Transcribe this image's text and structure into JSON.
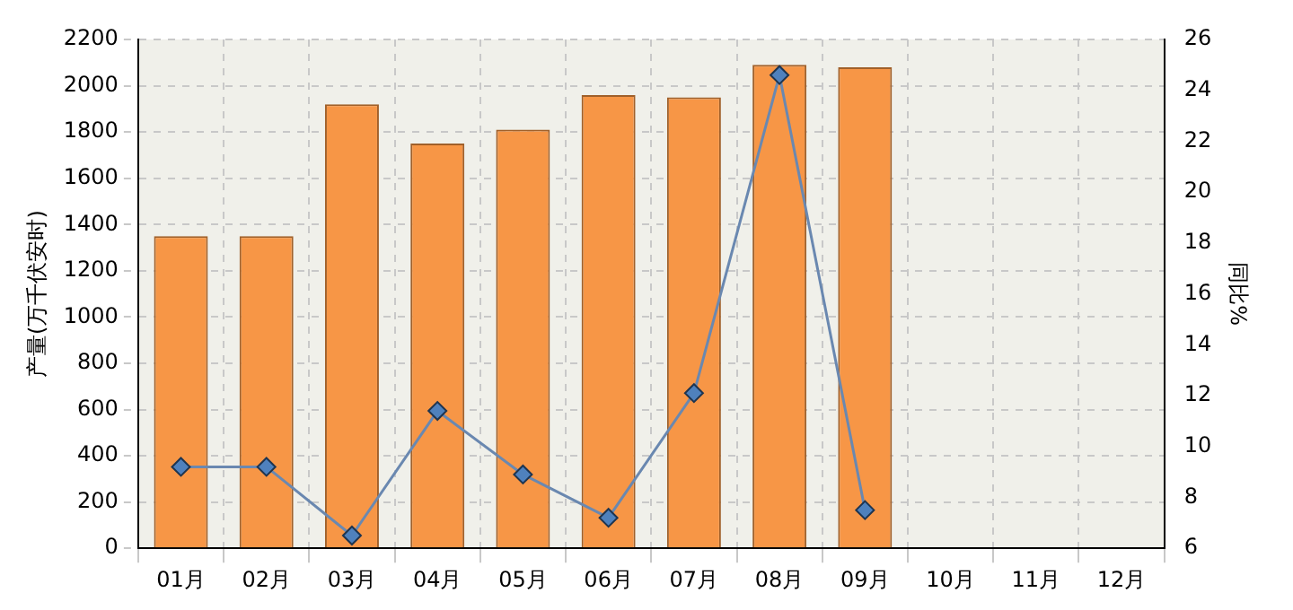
{
  "chart_data": {
    "type": "bar",
    "ylabel": "产量(万千伏安时)",
    "y2label": "同比%",
    "categories": [
      "01月",
      "02月",
      "03月",
      "04月",
      "05月",
      "06月",
      "07月",
      "08月",
      "09月",
      "10月",
      "11月",
      "12月"
    ],
    "series": [
      {
        "color": "#f79646",
        "values": [
          1350,
          1350,
          1920,
          1750,
          1810,
          1960,
          1950,
          2090,
          2080,
          null,
          null,
          null
        ]
      },
      {
        "type": "line",
        "axis": "y2",
        "color": "#4f81bd",
        "marker": "diamond",
        "values": [
          9.2,
          9.2,
          6.5,
          11.4,
          8.9,
          7.2,
          12.1,
          24.6,
          7.5,
          null,
          null,
          null
        ]
      }
    ],
    "ylim": [
      0,
      2200
    ],
    "yticks": [
      0,
      200,
      400,
      600,
      800,
      1000,
      1200,
      1400,
      1600,
      1800,
      2000,
      2200
    ],
    "y2lim": [
      6,
      26
    ],
    "y2ticks": [
      6,
      8,
      10,
      12,
      14,
      16,
      18,
      20,
      22,
      24,
      26
    ],
    "grid": true,
    "legend": false
  }
}
